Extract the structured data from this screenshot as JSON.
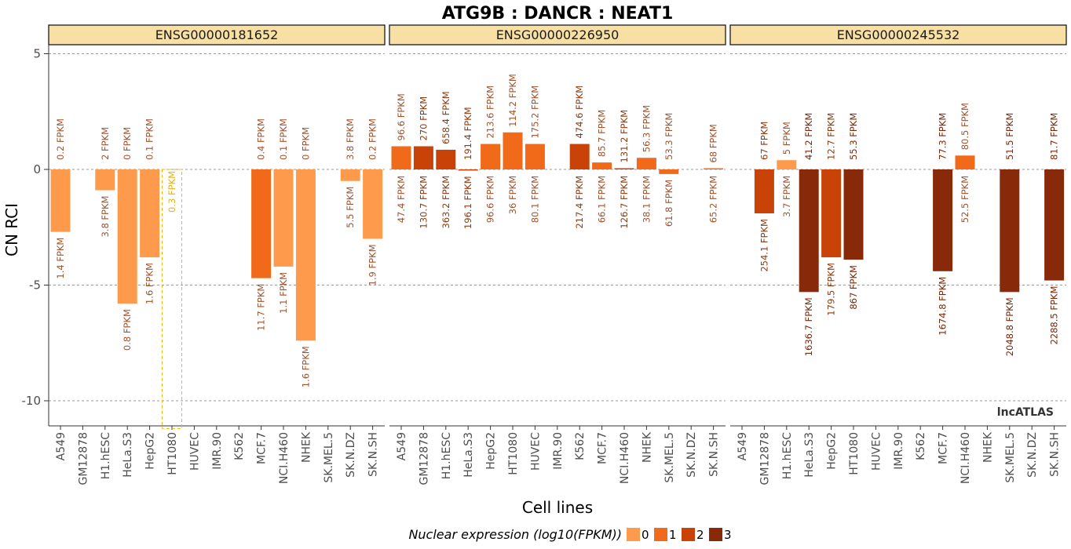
{
  "chart_data": {
    "type": "bar",
    "title": "ATG9B : DANCR : NEAT1",
    "xlabel": "Cell lines",
    "ylabel": "CN RCI",
    "ylim": [
      -11.2,
      5.3
    ],
    "yticks": [
      5,
      0,
      -5,
      -10
    ],
    "grid": "horizontal dashed",
    "watermark": "lncATLAS",
    "categories": [
      "A549",
      "GM12878",
      "H1.hESC",
      "HeLa.S3",
      "HepG2",
      "HT1080",
      "HUVEC",
      "IMR.90",
      "K562",
      "MCF.7",
      "NCI.H460",
      "NHEK",
      "SK.MEL.5",
      "SK.N.DZ",
      "SK.N.SH"
    ],
    "legend": {
      "title": "Nuclear expression (log10(FPKM))",
      "position": "bottom",
      "levels": [
        {
          "label": "0",
          "color": "#FD9A4C"
        },
        {
          "label": "1",
          "color": "#F06A1A"
        },
        {
          "label": "2",
          "color": "#C94208"
        },
        {
          "label": "3",
          "color": "#88290A"
        }
      ]
    },
    "panels": [
      {
        "name": "ENSG00000181652",
        "bars": [
          {
            "cell": "A549",
            "value": -2.7,
            "level": 0,
            "top_label": "0.2 FPKM",
            "bottom_label": "1.4 FPKM"
          },
          {
            "cell": "H1.hESC",
            "value": -0.9,
            "level": 0,
            "top_label": "2 FPKM",
            "bottom_label": "3.8 FPKM"
          },
          {
            "cell": "HeLa.S3",
            "value": -5.8,
            "level": 0,
            "top_label": "0 FPKM",
            "bottom_label": "0.8 FPKM"
          },
          {
            "cell": "HepG2",
            "value": -3.8,
            "level": 0,
            "top_label": "0.1 FPKM",
            "bottom_label": "1.6 FPKM"
          },
          {
            "cell": "HT1080",
            "value": -11.2,
            "level": 0,
            "dashed": true,
            "top_label": "",
            "bottom_label": "0.3 FPKM"
          },
          {
            "cell": "MCF.7",
            "value": -4.7,
            "level": 1,
            "top_label": "0.4 FPKM",
            "bottom_label": "11.7 FPKM"
          },
          {
            "cell": "NCI.H460",
            "value": -4.2,
            "level": 0,
            "top_label": "0.1 FPKM",
            "bottom_label": "1.1 FPKM"
          },
          {
            "cell": "NHEK",
            "value": -7.4,
            "level": 0,
            "top_label": "0 FPKM",
            "bottom_label": "1.6 FPKM"
          },
          {
            "cell": "SK.N.DZ",
            "value": -0.5,
            "level": 0,
            "top_label": "3.8 FPKM",
            "bottom_label": "5.5 FPKM"
          },
          {
            "cell": "SK.N.SH",
            "value": -3.0,
            "level": 0,
            "top_label": "0.2 FPKM",
            "bottom_label": "1.9 FPKM"
          }
        ]
      },
      {
        "name": "ENSG00000226950",
        "bars": [
          {
            "cell": "A549",
            "value": 1.0,
            "level": 1,
            "top_label": "96.6 FPKM",
            "bottom_label": "47.4 FPKM"
          },
          {
            "cell": "GM12878",
            "value": 1.0,
            "level": 2,
            "top_label": "270 FPKM",
            "bottom_label": "130.7 FPKM"
          },
          {
            "cell": "H1.hESC",
            "value": 0.85,
            "level": 2,
            "top_label": "658.4 FPKM",
            "bottom_label": "363.2 FPKM"
          },
          {
            "cell": "HeLa.S3",
            "value": -0.05,
            "level": 2,
            "top_label": "191.4 FPKM",
            "bottom_label": "196.1 FPKM"
          },
          {
            "cell": "HepG2",
            "value": 1.1,
            "level": 1,
            "top_label": "213.6 FPKM",
            "bottom_label": "96.6 FPKM"
          },
          {
            "cell": "HT1080",
            "value": 1.6,
            "level": 1,
            "top_label": "114.2 FPKM",
            "bottom_label": "36 FPKM"
          },
          {
            "cell": "HUVEC",
            "value": 1.1,
            "level": 1,
            "top_label": "175.2 FPKM",
            "bottom_label": "80.1 FPKM"
          },
          {
            "cell": "K562",
            "value": 1.1,
            "level": 2,
            "top_label": "474.6 FPKM",
            "bottom_label": "217.4 FPKM"
          },
          {
            "cell": "MCF.7",
            "value": 0.3,
            "level": 1,
            "top_label": "85.7 FPKM",
            "bottom_label": "66.1 FPKM"
          },
          {
            "cell": "NCI.H460",
            "value": 0.05,
            "level": 2,
            "top_label": "131.2 FPKM",
            "bottom_label": "126.7 FPKM"
          },
          {
            "cell": "NHEK",
            "value": 0.5,
            "level": 1,
            "top_label": "56.3 FPKM",
            "bottom_label": "38.1 FPKM"
          },
          {
            "cell": "SK.MEL.5",
            "value": -0.2,
            "level": 1,
            "top_label": "53.3 FPKM",
            "bottom_label": "61.8 FPKM"
          },
          {
            "cell": "SK.N.SH",
            "value": 0.05,
            "level": 1,
            "top_label": "68 FPKM",
            "bottom_label": "65.2 FPKM"
          }
        ]
      },
      {
        "name": "ENSG00000245532",
        "bars": [
          {
            "cell": "GM12878",
            "value": -1.9,
            "level": 2,
            "top_label": "67 FPKM",
            "bottom_label": "254.1 FPKM"
          },
          {
            "cell": "H1.hESC",
            "value": 0.4,
            "level": 0,
            "top_label": "5 FPKM",
            "bottom_label": "3.7 FPKM"
          },
          {
            "cell": "HeLa.S3",
            "value": -5.3,
            "level": 3,
            "top_label": "41.2 FPKM",
            "bottom_label": "1636.7 FPKM"
          },
          {
            "cell": "HepG2",
            "value": -3.8,
            "level": 2,
            "top_label": "12.7 FPKM",
            "bottom_label": "179.5 FPKM"
          },
          {
            "cell": "HT1080",
            "value": -3.9,
            "level": 3,
            "top_label": "55.3 FPKM",
            "bottom_label": "867 FPKM"
          },
          {
            "cell": "MCF.7",
            "value": -4.4,
            "level": 3,
            "top_label": "77.3 FPKM",
            "bottom_label": "1674.8 FPKM"
          },
          {
            "cell": "NCI.H460",
            "value": 0.6,
            "level": 1,
            "top_label": "80.5 FPKM",
            "bottom_label": "52.5 FPKM"
          },
          {
            "cell": "SK.MEL.5",
            "value": -5.3,
            "level": 3,
            "top_label": "51.5 FPKM",
            "bottom_label": "2048.8 FPKM"
          },
          {
            "cell": "SK.N.SH",
            "value": -4.8,
            "level": 3,
            "top_label": "81.7 FPKM",
            "bottom_label": "2288.5 FPKM"
          }
        ]
      }
    ]
  }
}
